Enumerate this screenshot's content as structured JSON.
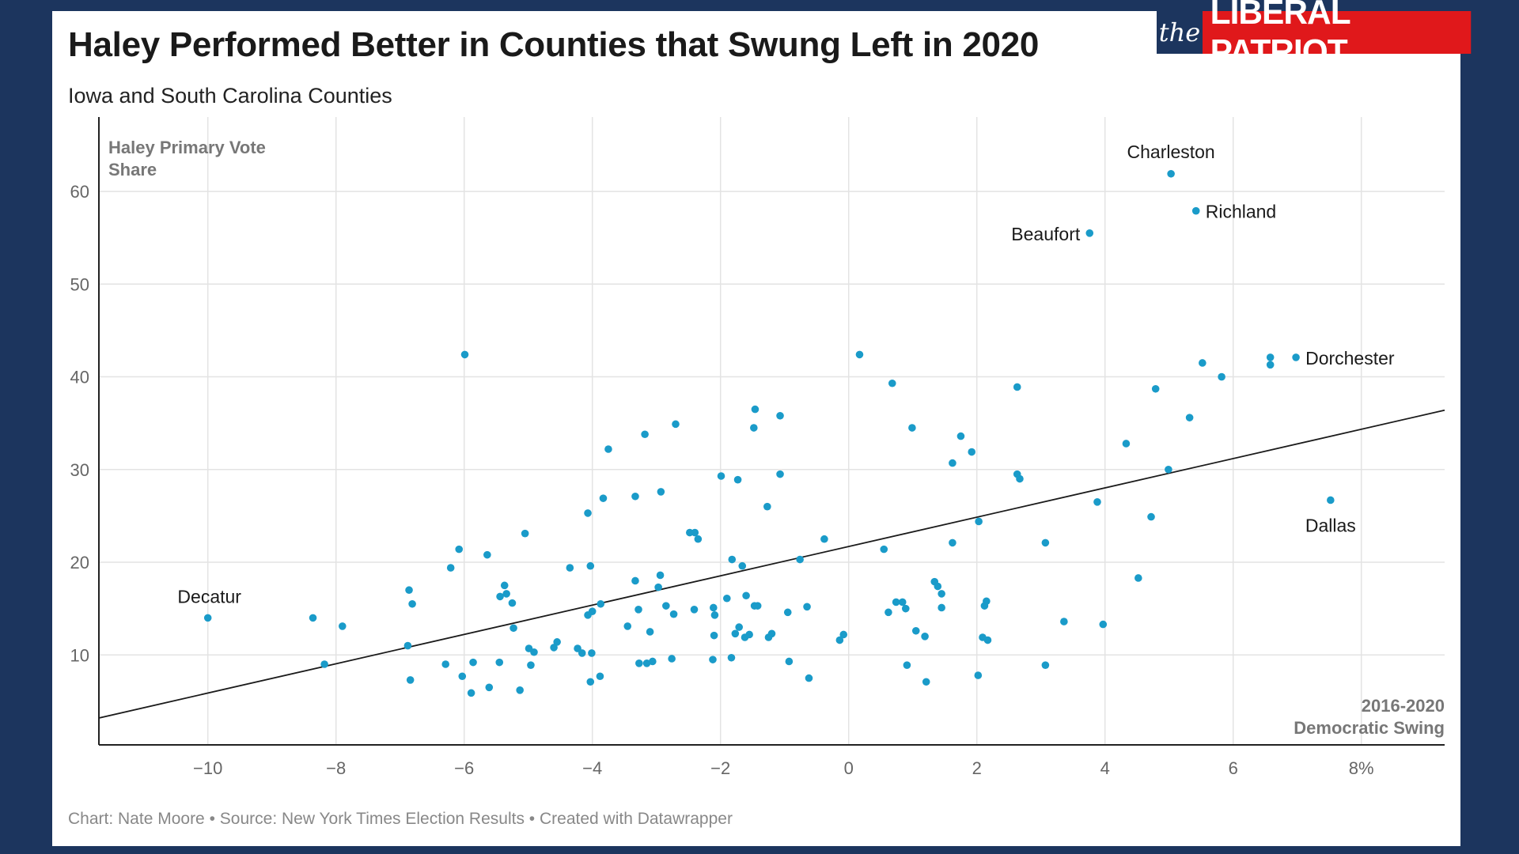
{
  "header": {
    "title": "Haley Performed Better in Counties that Swung Left in 2020",
    "subtitle": "Iowa and South Carolina Counties"
  },
  "logo": {
    "the": "the",
    "name": "LIBERAL PATRIOT",
    "colors": {
      "navy": "#1c355e",
      "red": "#e0181b"
    }
  },
  "footer": {
    "chart_credit": "Chart: Nate Moore",
    "separator": " • ",
    "source": "Source: New York Times Election Results",
    "tool": "Created with Datawrapper"
  },
  "chart_data": {
    "type": "scatter",
    "title": "Haley Performed Better in Counties that Swung Left in 2020",
    "subtitle": "Iowa and South Carolina Counties",
    "ylabel": [
      "Haley Primary Vote",
      "Share"
    ],
    "xlabel": [
      "2016-2020",
      "Democratic Swing"
    ],
    "xlim": [
      -11.7,
      9.3
    ],
    "ylim": [
      0.3,
      67
    ],
    "xticks": [
      -10,
      -8,
      -6,
      -4,
      -2,
      0,
      2,
      4,
      6,
      8
    ],
    "xtick_labels": [
      "−10",
      "−8",
      "−6",
      "−4",
      "−2",
      "0",
      "2",
      "4",
      "6",
      "8%"
    ],
    "yticks": [
      10,
      20,
      30,
      40,
      50,
      60
    ],
    "ytick_labels": [
      "10",
      "20",
      "30",
      "40",
      "50",
      "60"
    ],
    "grid": true,
    "colors": {
      "point": "#1a9bc9",
      "trend": "#1a1a1a",
      "grid": "#e3e3e3",
      "axis": "#222222"
    },
    "trendline": {
      "x": [
        -11.7,
        9.3
      ],
      "y": [
        3.2,
        36.4
      ]
    },
    "labels": [
      {
        "text": "Charleston",
        "x": 5.03,
        "y": 61.9,
        "anchor": "middle",
        "dx": 0,
        "dy": -20
      },
      {
        "text": "Richland",
        "x": 5.42,
        "y": 57.9,
        "anchor": "start",
        "dx": 12,
        "dy": 9
      },
      {
        "text": "Beaufort",
        "x": 3.76,
        "y": 55.5,
        "anchor": "end",
        "dx": -12,
        "dy": 9
      },
      {
        "text": "Dorchester",
        "x": 6.98,
        "y": 42.1,
        "anchor": "start",
        "dx": 12,
        "dy": 9
      },
      {
        "text": "Dallas",
        "x": 7.52,
        "y": 26.7,
        "anchor": "middle",
        "dx": 0,
        "dy": 40
      },
      {
        "text": "Decatur",
        "x": -10.0,
        "y": 14.0,
        "anchor": "middle",
        "dx": 2,
        "dy": -19
      }
    ],
    "points": [
      [
        5.03,
        61.9
      ],
      [
        5.42,
        57.9
      ],
      [
        3.76,
        55.5
      ],
      [
        6.98,
        42.1
      ],
      [
        6.58,
        42.1
      ],
      [
        6.58,
        41.3
      ],
      [
        7.52,
        26.7
      ],
      [
        -10.0,
        14.0
      ],
      [
        -5.99,
        42.4
      ],
      [
        0.17,
        42.4
      ],
      [
        0.68,
        39.3
      ],
      [
        2.63,
        38.9
      ],
      [
        5.52,
        41.5
      ],
      [
        5.82,
        40.0
      ],
      [
        4.79,
        38.7
      ],
      [
        5.32,
        35.6
      ],
      [
        4.33,
        32.8
      ],
      [
        4.99,
        30.0
      ],
      [
        3.88,
        26.5
      ],
      [
        4.72,
        24.9
      ],
      [
        4.52,
        18.3
      ],
      [
        3.97,
        13.3
      ],
      [
        3.36,
        13.6
      ],
      [
        3.07,
        22.1
      ],
      [
        3.07,
        8.9
      ],
      [
        2.63,
        29.5
      ],
      [
        2.67,
        29.0
      ],
      [
        2.03,
        24.4
      ],
      [
        1.75,
        33.6
      ],
      [
        1.92,
        31.9
      ],
      [
        1.62,
        30.7
      ],
      [
        1.62,
        22.1
      ],
      [
        0.99,
        34.5
      ],
      [
        0.55,
        21.4
      ],
      [
        2.15,
        15.8
      ],
      [
        2.12,
        15.3
      ],
      [
        2.09,
        11.9
      ],
      [
        2.17,
        11.6
      ],
      [
        2.02,
        7.8
      ],
      [
        1.34,
        17.9
      ],
      [
        1.39,
        17.4
      ],
      [
        1.45,
        16.6
      ],
      [
        1.45,
        15.1
      ],
      [
        1.19,
        12.0
      ],
      [
        1.05,
        12.6
      ],
      [
        0.84,
        15.7
      ],
      [
        0.74,
        15.7
      ],
      [
        0.89,
        15.0
      ],
      [
        0.62,
        14.6
      ],
      [
        0.91,
        8.9
      ],
      [
        1.21,
        7.1
      ],
      [
        -0.08,
        12.2
      ],
      [
        -0.14,
        11.6
      ],
      [
        -0.38,
        22.5
      ],
      [
        -0.65,
        15.2
      ],
      [
        -0.62,
        7.5
      ],
      [
        -0.76,
        20.3
      ],
      [
        -0.95,
        14.6
      ],
      [
        -0.93,
        9.3
      ],
      [
        -1.07,
        35.8
      ],
      [
        -1.07,
        29.5
      ],
      [
        -1.46,
        36.5
      ],
      [
        -1.48,
        34.5
      ],
      [
        -1.27,
        26.0
      ],
      [
        -1.42,
        15.3
      ],
      [
        -1.47,
        15.3
      ],
      [
        -1.2,
        12.3
      ],
      [
        -1.25,
        11.9
      ],
      [
        -1.73,
        28.9
      ],
      [
        -1.66,
        19.6
      ],
      [
        -1.6,
        16.4
      ],
      [
        -1.82,
        20.3
      ],
      [
        -1.9,
        16.1
      ],
      [
        -1.71,
        13.0
      ],
      [
        -1.77,
        12.3
      ],
      [
        -1.55,
        12.2
      ],
      [
        -1.62,
        11.9
      ],
      [
        -1.83,
        9.7
      ],
      [
        -1.99,
        29.3
      ],
      [
        -2.11,
        15.1
      ],
      [
        -2.09,
        14.3
      ],
      [
        -2.1,
        12.1
      ],
      [
        -2.12,
        9.5
      ],
      [
        -2.35,
        22.5
      ],
      [
        -2.4,
        23.2
      ],
      [
        -2.48,
        23.2
      ],
      [
        -2.41,
        14.9
      ],
      [
        -2.73,
        14.4
      ],
      [
        -2.7,
        34.9
      ],
      [
        -2.93,
        27.6
      ],
      [
        -2.94,
        18.6
      ],
      [
        -2.97,
        17.3
      ],
      [
        -2.85,
        15.3
      ],
      [
        -3.18,
        33.8
      ],
      [
        -3.33,
        27.1
      ],
      [
        -3.33,
        18.0
      ],
      [
        -3.28,
        14.9
      ],
      [
        -3.1,
        12.5
      ],
      [
        -3.45,
        13.1
      ],
      [
        -3.06,
        9.3
      ],
      [
        -3.27,
        9.1
      ],
      [
        -3.15,
        9.1
      ],
      [
        -2.76,
        9.6
      ],
      [
        -3.75,
        32.2
      ],
      [
        -3.83,
        26.9
      ],
      [
        -3.87,
        15.5
      ],
      [
        -4.07,
        25.3
      ],
      [
        -4.03,
        19.6
      ],
      [
        -4.0,
        14.7
      ],
      [
        -4.07,
        14.3
      ],
      [
        -4.01,
        10.2
      ],
      [
        -4.03,
        7.1
      ],
      [
        -4.16,
        10.2
      ],
      [
        -4.23,
        10.7
      ],
      [
        -3.88,
        7.7
      ],
      [
        -4.35,
        19.4
      ],
      [
        -4.55,
        11.4
      ],
      [
        -4.6,
        10.8
      ],
      [
        -4.91,
        10.3
      ],
      [
        -4.99,
        10.7
      ],
      [
        -4.96,
        8.9
      ],
      [
        -5.05,
        23.1
      ],
      [
        -5.13,
        6.2
      ],
      [
        -5.25,
        15.6
      ],
      [
        -5.23,
        12.9
      ],
      [
        -5.37,
        17.5
      ],
      [
        -5.34,
        16.6
      ],
      [
        -5.44,
        16.3
      ],
      [
        -5.45,
        9.2
      ],
      [
        -5.64,
        20.8
      ],
      [
        -5.61,
        6.5
      ],
      [
        -5.86,
        9.2
      ],
      [
        -5.89,
        5.9
      ],
      [
        -6.03,
        7.7
      ],
      [
        -6.08,
        21.4
      ],
      [
        -6.21,
        19.4
      ],
      [
        -6.29,
        9.0
      ],
      [
        -6.81,
        15.5
      ],
      [
        -6.86,
        17.0
      ],
      [
        -6.88,
        11.0
      ],
      [
        -6.84,
        7.3
      ],
      [
        -8.36,
        14.0
      ],
      [
        -7.9,
        13.1
      ],
      [
        -8.18,
        9.0
      ]
    ]
  }
}
